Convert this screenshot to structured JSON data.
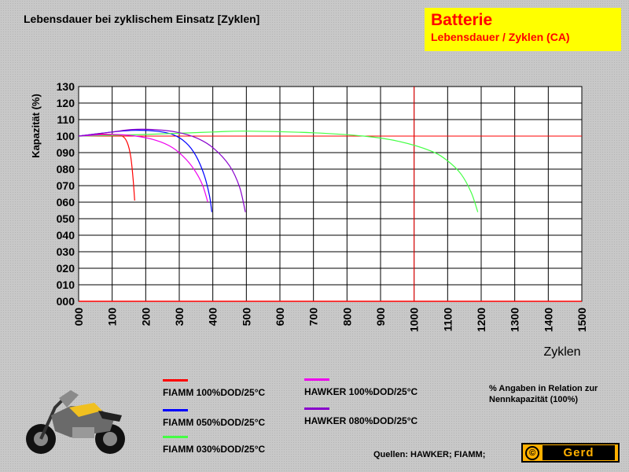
{
  "page_title": "Lebensdauer bei zyklischem Einsatz [Zyklen]",
  "title_box": {
    "main": "Batterie",
    "sub": "Lebensdauer / Zyklen (CA)"
  },
  "legend": [
    {
      "label": "FIAMM 100%DOD/25°C",
      "color": "#ff0000"
    },
    {
      "label": "FIAMM 050%DOD/25°C",
      "color": "#0000ff"
    },
    {
      "label": "FIAMM 030%DOD/25°C",
      "color": "#44ff44"
    },
    {
      "label": "HAWKER 100%DOD/25°C",
      "color": "#ee00ee"
    },
    {
      "label": "HAWKER 080%DOD/25°C",
      "color": "#8800cc"
    }
  ],
  "note": "% Angaben in Relation zur Nennkapazität (100%)",
  "sources": "Quellen: HAWKER; FIAMM;",
  "logo": {
    "symbol": "©",
    "text": "Gerd"
  },
  "chart_data": {
    "type": "line",
    "xlabel": "Zyklen",
    "ylabel": "Kapazität (%)",
    "xlim": [
      0,
      1500
    ],
    "ylim": [
      0,
      130
    ],
    "xticks": [
      "000",
      "100",
      "200",
      "300",
      "400",
      "500",
      "600",
      "700",
      "800",
      "900",
      "1000",
      "1100",
      "1200",
      "1300",
      "1400",
      "1500"
    ],
    "yticks": [
      "000",
      "010",
      "020",
      "030",
      "040",
      "050",
      "060",
      "070",
      "080",
      "090",
      "100",
      "110",
      "120",
      "130"
    ],
    "grid": true,
    "reference_lines": {
      "x": 1000,
      "y": 100,
      "color": "#ff0000"
    },
    "series": [
      {
        "name": "FIAMM 100%DOD/25°C",
        "color": "#ff0000",
        "x": [
          0,
          50,
          100,
          130,
          145,
          155,
          162,
          167
        ],
        "y": [
          100,
          101,
          101,
          100,
          96,
          88,
          75,
          61
        ]
      },
      {
        "name": "FIAMM 050%DOD/25°C",
        "color": "#0000ff",
        "x": [
          0,
          100,
          170,
          230,
          280,
          320,
          350,
          375,
          390,
          397
        ],
        "y": [
          100,
          102.5,
          103.5,
          103,
          101,
          96,
          88,
          76,
          64,
          54
        ]
      },
      {
        "name": "FIAMM 030%DOD/25°C",
        "color": "#44ff44",
        "x": [
          0,
          200,
          400,
          500,
          700,
          850,
          950,
          1050,
          1100,
          1140,
          1170,
          1190
        ],
        "y": [
          100,
          101,
          102.5,
          103,
          102,
          100,
          97,
          91,
          85,
          77,
          66,
          54
        ]
      },
      {
        "name": "HAWKER 100%DOD/25°C",
        "color": "#ee00ee",
        "x": [
          0,
          100,
          170,
          230,
          280,
          320,
          350,
          370,
          385
        ],
        "y": [
          100,
          101,
          100,
          97.5,
          93,
          86,
          78,
          70,
          60
        ]
      },
      {
        "name": "HAWKER 080%DOD/25°C",
        "color": "#8800cc",
        "x": [
          0,
          100,
          160,
          220,
          290,
          350,
          400,
          450,
          480,
          497
        ],
        "y": [
          100,
          102.5,
          104,
          104,
          102.5,
          99,
          93,
          82,
          69,
          54
        ]
      }
    ]
  }
}
